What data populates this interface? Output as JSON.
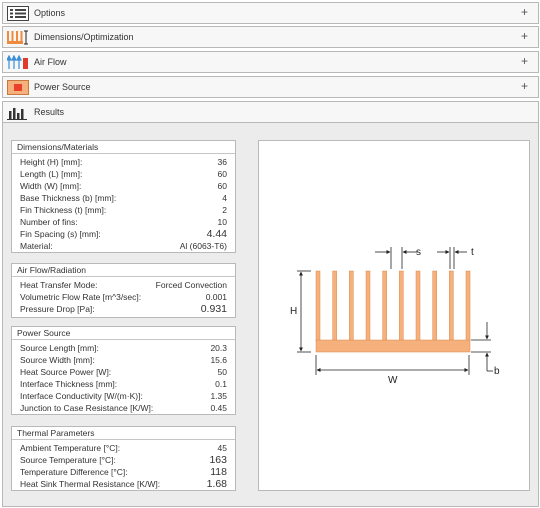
{
  "accordion": {
    "options": "Options",
    "dimensions": "Dimensions/Optimization",
    "airflow": "Air Flow",
    "power": "Power Source",
    "results": "Results",
    "expand_symbol": "+"
  },
  "colors": {
    "heatsink": "#f5b07c",
    "heatsink_stroke": "#d9894e",
    "power_icon": "#e8402a",
    "panel_border": "#b9b9b9"
  },
  "dimensions_panel": {
    "title": "Dimensions/Materials",
    "rows": [
      {
        "label": "Height (H) [mm]:",
        "value": "36"
      },
      {
        "label": "Length (L) [mm]:",
        "value": "60"
      },
      {
        "label": "Width (W) [mm]:",
        "value": "60"
      },
      {
        "label": "Base Thickness (b) [mm]:",
        "value": "4"
      },
      {
        "label": "Fin Thickness (t) [mm]:",
        "value": "2"
      },
      {
        "label": "Number of fins:",
        "value": "10"
      },
      {
        "label": "Fin Spacing (s) [mm]:",
        "value": "4.44"
      },
      {
        "label": "Material:",
        "value": "Al (6063-T6)"
      }
    ]
  },
  "airflow_panel": {
    "title": "Air Flow/Radiation",
    "rows": [
      {
        "label": "Heat Transfer Mode:",
        "value": "Forced Convection"
      },
      {
        "label": "Volumetric Flow Rate [m^3/sec]:",
        "value": "0.001"
      },
      {
        "label": "Pressure Drop [Pa]:",
        "value": "0.931"
      }
    ]
  },
  "power_panel": {
    "title": "Power Source",
    "rows": [
      {
        "label": "Source Length [mm]:",
        "value": "20.3"
      },
      {
        "label": "Source Width [mm]:",
        "value": "15.6"
      },
      {
        "label": "Heat Source Power [W]:",
        "value": "50"
      },
      {
        "label": "Interface Thickness [mm]:",
        "value": "0.1"
      },
      {
        "label": "Interface Conductivity [W/(m·K)]:",
        "value": "1.35"
      },
      {
        "label": "Junction to Case Resistance [K/W]:",
        "value": "0.45"
      }
    ]
  },
  "thermal_panel": {
    "title": "Thermal Parameters",
    "rows": [
      {
        "label": "Ambient Temperature [°C]:",
        "value": "45"
      },
      {
        "label": "Source Temperature [°C]:",
        "value": "163"
      },
      {
        "label": "Temperature Difference [°C]:",
        "value": "118"
      },
      {
        "label": "Heat Sink Thermal Resistance [K/W]:",
        "value": "1.68"
      }
    ]
  },
  "diagram": {
    "label_h": "H",
    "label_w": "W",
    "label_b": "b",
    "label_s": "s",
    "label_t": "t"
  }
}
